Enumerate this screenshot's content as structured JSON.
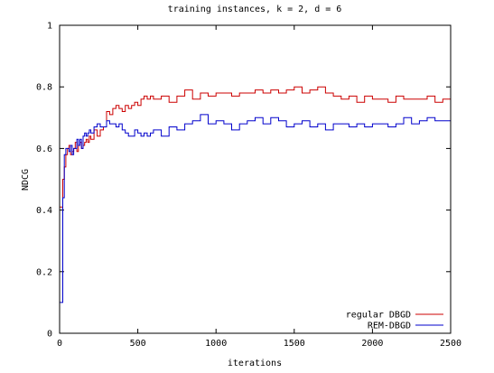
{
  "chart_data": {
    "type": "line",
    "title": "training instances, k = 2, d = 6",
    "xlabel": "iterations",
    "ylabel": "NDCG",
    "xlim": [
      0,
      2500
    ],
    "ylim": [
      0,
      1
    ],
    "x_ticks": [
      0,
      500,
      1000,
      1500,
      2000,
      2500
    ],
    "y_ticks": [
      0,
      0.2,
      0.4,
      0.6,
      0.8,
      1
    ],
    "x_tick_labels": [
      "0",
      "500",
      "1000",
      "1500",
      "2000",
      "2500"
    ],
    "y_tick_labels": [
      "0",
      "0.2",
      "0.4",
      "0.6",
      "0.8",
      "1"
    ],
    "grid": false,
    "legend_position": "bottom-right",
    "series": [
      {
        "name": "regular DBGD",
        "color": "#cc0000",
        "x": [
          0,
          10,
          20,
          30,
          40,
          50,
          60,
          70,
          80,
          90,
          100,
          110,
          120,
          130,
          140,
          150,
          160,
          170,
          180,
          190,
          200,
          220,
          240,
          260,
          280,
          300,
          320,
          340,
          360,
          380,
          400,
          420,
          440,
          460,
          480,
          500,
          520,
          540,
          560,
          580,
          600,
          650,
          700,
          750,
          800,
          850,
          900,
          950,
          1000,
          1050,
          1100,
          1150,
          1200,
          1250,
          1300,
          1350,
          1400,
          1450,
          1500,
          1550,
          1600,
          1650,
          1700,
          1750,
          1800,
          1850,
          1900,
          1950,
          2000,
          2050,
          2100,
          2150,
          2200,
          2250,
          2300,
          2350,
          2400,
          2450,
          2500
        ],
        "y": [
          0.41,
          0.41,
          0.5,
          0.54,
          0.58,
          0.6,
          0.61,
          0.58,
          0.59,
          0.6,
          0.62,
          0.59,
          0.61,
          0.62,
          0.6,
          0.61,
          0.62,
          0.63,
          0.62,
          0.64,
          0.63,
          0.66,
          0.64,
          0.66,
          0.67,
          0.72,
          0.71,
          0.73,
          0.74,
          0.73,
          0.72,
          0.74,
          0.73,
          0.74,
          0.75,
          0.74,
          0.76,
          0.77,
          0.76,
          0.77,
          0.76,
          0.77,
          0.75,
          0.77,
          0.79,
          0.76,
          0.78,
          0.77,
          0.78,
          0.78,
          0.77,
          0.78,
          0.78,
          0.79,
          0.78,
          0.79,
          0.78,
          0.79,
          0.8,
          0.78,
          0.79,
          0.8,
          0.78,
          0.77,
          0.76,
          0.77,
          0.75,
          0.77,
          0.76,
          0.76,
          0.75,
          0.77,
          0.76,
          0.76,
          0.76,
          0.77,
          0.75,
          0.76,
          0.76
        ]
      },
      {
        "name": "REM-DBGD",
        "color": "#0000cc",
        "x": [
          0,
          10,
          20,
          30,
          40,
          50,
          60,
          70,
          80,
          90,
          100,
          110,
          120,
          130,
          140,
          150,
          160,
          170,
          180,
          190,
          200,
          220,
          240,
          260,
          280,
          300,
          320,
          340,
          360,
          380,
          400,
          420,
          440,
          460,
          480,
          500,
          520,
          540,
          560,
          580,
          600,
          650,
          700,
          750,
          800,
          850,
          900,
          950,
          1000,
          1050,
          1100,
          1150,
          1200,
          1250,
          1300,
          1350,
          1400,
          1450,
          1500,
          1550,
          1600,
          1650,
          1700,
          1750,
          1800,
          1850,
          1900,
          1950,
          2000,
          2050,
          2100,
          2150,
          2200,
          2250,
          2300,
          2350,
          2400,
          2450,
          2500
        ],
        "y": [
          0.1,
          0.1,
          0.44,
          0.58,
          0.6,
          0.6,
          0.59,
          0.61,
          0.58,
          0.6,
          0.6,
          0.63,
          0.61,
          0.63,
          0.6,
          0.64,
          0.65,
          0.64,
          0.65,
          0.66,
          0.65,
          0.67,
          0.68,
          0.67,
          0.67,
          0.69,
          0.68,
          0.68,
          0.67,
          0.68,
          0.66,
          0.65,
          0.64,
          0.64,
          0.66,
          0.65,
          0.64,
          0.65,
          0.64,
          0.65,
          0.66,
          0.64,
          0.67,
          0.66,
          0.68,
          0.69,
          0.71,
          0.68,
          0.69,
          0.68,
          0.66,
          0.68,
          0.69,
          0.7,
          0.68,
          0.7,
          0.69,
          0.67,
          0.68,
          0.69,
          0.67,
          0.68,
          0.66,
          0.68,
          0.68,
          0.67,
          0.68,
          0.67,
          0.68,
          0.68,
          0.67,
          0.68,
          0.7,
          0.68,
          0.69,
          0.7,
          0.69,
          0.69,
          0.69
        ]
      }
    ]
  }
}
